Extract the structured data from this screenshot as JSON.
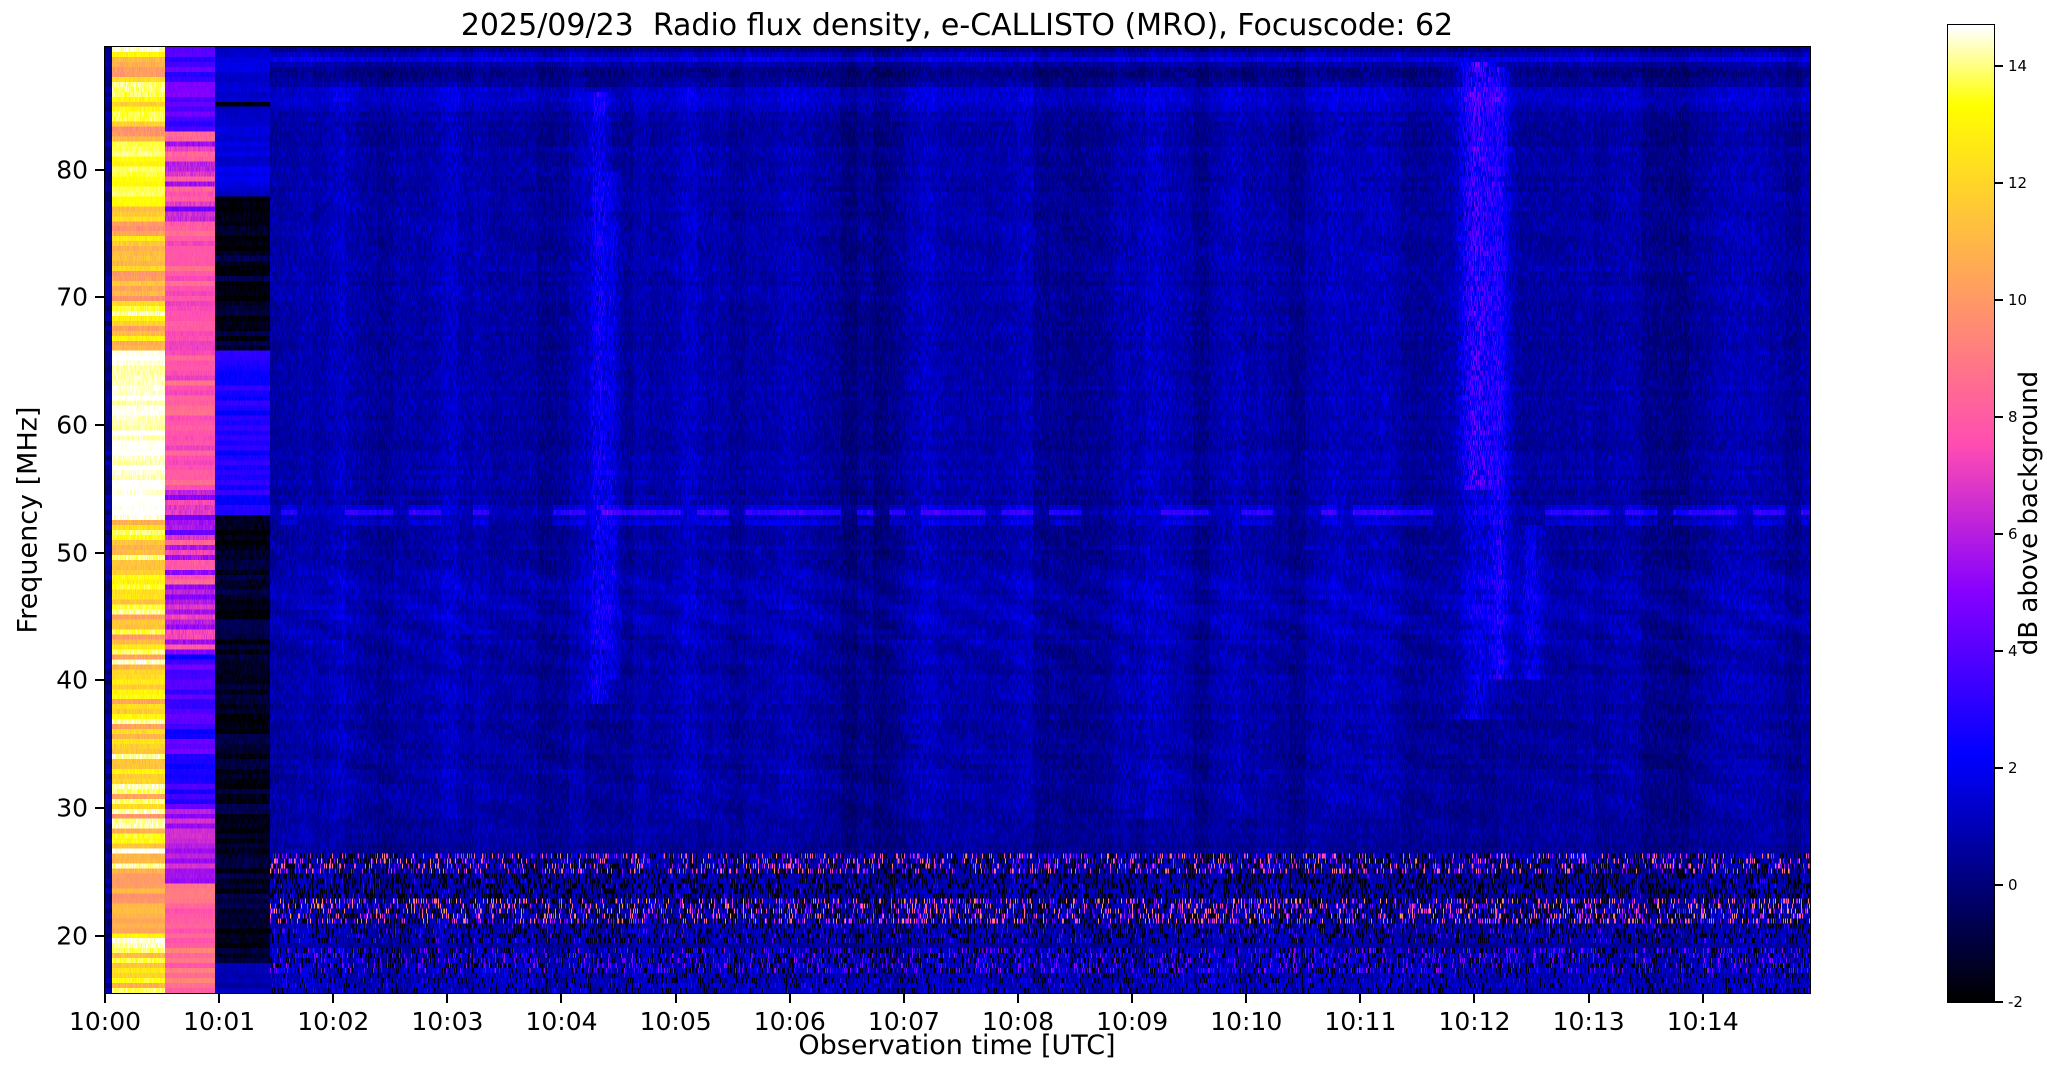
{
  "title": "2025/09/23  Radio flux density, e-CALLISTO (MRO), Focuscode: 62",
  "colors": {
    "background": "#ffffff",
    "axes": "#000000"
  },
  "chart_data": {
    "type": "heatmap",
    "title": "2025/09/23  Radio flux density, e-CALLISTO (MRO), Focuscode: 62",
    "xlabel": "Observation time [UTC]",
    "ylabel": "Frequency [MHz]",
    "colorbar_label": "dB above background",
    "colormap": "gnuplot2",
    "grid": false,
    "x_ticks": [
      {
        "minute": 0,
        "label": "10:00"
      },
      {
        "minute": 1,
        "label": "10:01"
      },
      {
        "minute": 2,
        "label": "10:02"
      },
      {
        "minute": 3,
        "label": "10:03"
      },
      {
        "minute": 4,
        "label": "10:04"
      },
      {
        "minute": 5,
        "label": "10:05"
      },
      {
        "minute": 6,
        "label": "10:06"
      },
      {
        "minute": 7,
        "label": "10:07"
      },
      {
        "minute": 8,
        "label": "10:08"
      },
      {
        "minute": 9,
        "label": "10:09"
      },
      {
        "minute": 10,
        "label": "10:10"
      },
      {
        "minute": 11,
        "label": "10:11"
      },
      {
        "minute": 12,
        "label": "10:12"
      },
      {
        "minute": 13,
        "label": "10:13"
      },
      {
        "minute": 14,
        "label": "10:14"
      }
    ],
    "y_ticks_mhz": [
      20,
      30,
      40,
      50,
      60,
      70,
      80
    ],
    "colorbar_ticks_db": [
      -2,
      0,
      2,
      4,
      6,
      8,
      10,
      12,
      14
    ],
    "time_range_minutes": [
      0,
      14.94
    ],
    "freq_range_mhz": [
      15.5,
      89.6
    ],
    "value_range_db": [
      -2,
      14.7
    ],
    "features": {
      "leading_bands": [
        {
          "name": "left-dark-sliver",
          "t0": 0.0,
          "t1": 0.06,
          "base": 0.3,
          "row_noise": 0.6,
          "seed": 44,
          "zones": []
        },
        {
          "name": "saturated-bright-band",
          "t0": 0.06,
          "t1": 0.53,
          "base": 12.2,
          "row_noise": 2.6,
          "seed": 11,
          "zones": [
            {
              "f0": 53,
              "f1": 66,
              "value": 14.6,
              "noise": 0.8
            },
            {
              "f0": 77,
              "f1": 82,
              "value": 13.5,
              "noise": 1.2
            },
            {
              "f0": 20,
              "f1": 25,
              "value": 10.5,
              "noise": 1.5
            }
          ]
        },
        {
          "name": "pink-band",
          "t0": 0.53,
          "t1": 0.96,
          "base": 6.5,
          "row_noise": 2.2,
          "seed": 22,
          "zones": [
            {
              "f0": 15.5,
              "f1": 24,
              "value": 8.5,
              "noise": 2.0
            },
            {
              "f0": 24,
              "f1": 30,
              "value": 6.0,
              "noise": 2.0
            },
            {
              "f0": 30,
              "f1": 42,
              "value": 3.5,
              "noise": 2.4
            },
            {
              "f0": 55,
              "f1": 75,
              "value": 8.0,
              "noise": 1.8
            },
            {
              "f0": 83,
              "f1": 89.6,
              "value": 4.0,
              "noise": 2.5
            }
          ]
        },
        {
          "name": "black-band",
          "t0": 0.96,
          "t1": 1.45,
          "base": -1.4,
          "row_noise": 0.8,
          "seed": 33,
          "zones": [
            {
              "f0": 53,
              "f1": 66,
              "value": 2.6,
              "noise": 1.4
            },
            {
              "f0": 78,
              "f1": 85,
              "value": 1.6,
              "noise": 1.0
            },
            {
              "f0": 85.5,
              "f1": 89.6,
              "value": 1.5,
              "noise": 0.8
            },
            {
              "f0": 15.5,
              "f1": 18,
              "value": 0.8,
              "noise": 1.0
            }
          ]
        }
      ],
      "quiet_background": {
        "base": 0.15,
        "noise": 1.0,
        "col_noise": 0.55,
        "col_noise2": 0.3,
        "row_noise": 0.35,
        "start_minute": 1.45
      },
      "top_dim": {
        "above_mhz": 86.3,
        "amount": 0.3
      },
      "vertical_streaks": [
        {
          "t": 2.1,
          "w": 0.15,
          "amp": 0.9,
          "f0": 29,
          "f1": 87,
          "seed": 1
        },
        {
          "t": 2.6,
          "w": 0.2,
          "amp": 0.6,
          "f0": 29,
          "f1": 87,
          "seed": 2
        },
        {
          "t": 3.05,
          "w": 0.18,
          "amp": 0.9,
          "f0": 29,
          "f1": 87,
          "seed": 3
        },
        {
          "t": 4.32,
          "w": 0.1,
          "amp": 2.6,
          "f0": 38,
          "f1": 86,
          "seed": 25
        },
        {
          "t": 4.45,
          "w": 0.07,
          "amp": 1.6,
          "f0": 40,
          "f1": 80,
          "seed": 26
        },
        {
          "t": 5.15,
          "w": 0.2,
          "amp": 0.9,
          "f0": 29,
          "f1": 87,
          "seed": 4
        },
        {
          "t": 6.05,
          "w": 0.2,
          "amp": 0.7,
          "f0": 29,
          "f1": 87,
          "seed": 5
        },
        {
          "t": 7.15,
          "w": 0.25,
          "amp": 0.8,
          "f0": 29,
          "f1": 87,
          "seed": 6
        },
        {
          "t": 8.05,
          "w": 0.2,
          "amp": 0.7,
          "f0": 29,
          "f1": 87,
          "seed": 7
        },
        {
          "t": 9.15,
          "w": 0.3,
          "amp": 1.0,
          "f0": 29,
          "f1": 87,
          "seed": 8
        },
        {
          "t": 9.95,
          "w": 0.2,
          "amp": 0.9,
          "f0": 29,
          "f1": 87,
          "seed": 9
        },
        {
          "t": 10.8,
          "w": 0.15,
          "amp": 0.9,
          "f0": 29,
          "f1": 87,
          "seed": 10
        },
        {
          "t": 11.15,
          "w": 0.2,
          "amp": 0.8,
          "f0": 29,
          "f1": 87,
          "seed": 11
        },
        {
          "t": 12.02,
          "w": 0.16,
          "amp": 4.2,
          "f0": 55,
          "f1": 88.5,
          "seed": 21
        },
        {
          "t": 12.02,
          "w": 0.16,
          "amp": 2.0,
          "f0": 37,
          "f1": 55,
          "seed": 22
        },
        {
          "t": 12.22,
          "w": 0.1,
          "amp": 2.6,
          "f0": 40,
          "f1": 88,
          "seed": 23
        },
        {
          "t": 12.5,
          "w": 0.1,
          "amp": 2.2,
          "f0": 40,
          "f1": 52,
          "seed": 24
        },
        {
          "t": 13.3,
          "w": 0.2,
          "amp": 0.6,
          "f0": 29,
          "f1": 87,
          "seed": 12
        },
        {
          "t": 14.25,
          "w": 0.2,
          "amp": 0.6,
          "f0": 29,
          "f1": 87,
          "seed": 13
        }
      ],
      "dark_columns": [
        {
          "t": 6.65,
          "w": 0.35,
          "amp": -0.3
        },
        {
          "t": 8.4,
          "w": 0.3,
          "amp": -0.2
        },
        {
          "t": 9.6,
          "w": 0.25,
          "amp": -0.25
        },
        {
          "t": 10.3,
          "w": 0.2,
          "amp": -0.2
        },
        {
          "t": 13.95,
          "w": 0.3,
          "amp": -0.22
        }
      ],
      "horizontal_lines": [
        {
          "f": 88.7,
          "w": 0.35,
          "amp": 1.8,
          "t0": 0,
          "dash": false
        },
        {
          "f": 85.6,
          "w": 0.9,
          "amp": 0.8,
          "t0": 0,
          "dash": false
        },
        {
          "f": 53.2,
          "w": 0.3,
          "amp": 2.4,
          "t0": 1.45,
          "dash": true
        },
        {
          "f": 52.4,
          "w": 0.25,
          "amp": 1.0,
          "t0": 1.45,
          "dash": true
        },
        {
          "f": 46.0,
          "w": 2.5,
          "amp": 0.3,
          "t0": 1.45,
          "dash": false
        }
      ],
      "ripples": [
        {
          "fc": 45,
          "fs": 5,
          "amp": 0.28,
          "tf": 7.5,
          "ff": 2.2
        },
        {
          "fc": 33,
          "fs": 4,
          "amp": 0.18,
          "tf": 6.0,
          "ff": 2.0
        },
        {
          "fc": 75,
          "fs": 6,
          "amp": 0.12,
          "tf": 5.0,
          "ff": 1.5
        }
      ],
      "rfi_bands": [
        {
          "f0": 25.0,
          "f1": 26.5,
          "bright": 0.2,
          "amp": 9.0,
          "black": 0.28,
          "boost": 0.8,
          "seed": 3
        },
        {
          "f0": 23.0,
          "f1": 24.9,
          "bright": 0.06,
          "amp": 3.5,
          "black": 0.35,
          "boost": 0.5,
          "seed": 4
        },
        {
          "f0": 21.0,
          "f1": 22.9,
          "bright": 0.22,
          "amp": 9.5,
          "black": 0.3,
          "boost": 0.8,
          "seed": 5
        },
        {
          "f0": 19.3,
          "f1": 20.9,
          "bright": 0.1,
          "amp": 4.0,
          "black": 0.25,
          "boost": 0.6,
          "seed": 6
        },
        {
          "f0": 17.0,
          "f1": 19.2,
          "bright": 0.2,
          "amp": 5.0,
          "black": 0.22,
          "boost": 0.9,
          "seed": 7
        },
        {
          "f0": 15.5,
          "f1": 16.9,
          "bright": 0.12,
          "amp": 3.0,
          "black": 0.15,
          "boost": 0.8,
          "seed": 8
        }
      ]
    }
  }
}
